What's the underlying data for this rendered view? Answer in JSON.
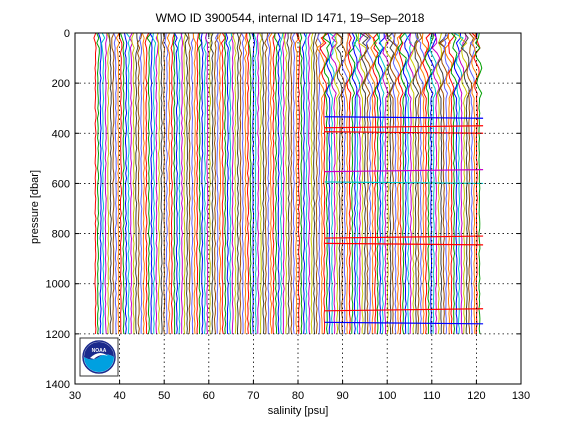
{
  "chart_data": {
    "type": "line",
    "title": "WMO ID 3900544, internal ID 1471, 19–Sep–2018",
    "xlabel": "salinity [psu]",
    "ylabel": "pressure [dbar]",
    "xlim": [
      30,
      130
    ],
    "ylim": [
      0,
      1400
    ],
    "y_reversed": true,
    "grid": true,
    "x_ticks": [
      "30",
      "40",
      "50",
      "60",
      "70",
      "80",
      "90",
      "100",
      "110",
      "120",
      "130"
    ],
    "y_ticks": [
      "0",
      "200",
      "400",
      "600",
      "800",
      "1000",
      "1200",
      "1400"
    ],
    "profile_spacing": 0.57,
    "profile_count": 152,
    "x_start": 34.6,
    "pressure_max": 1200,
    "series_colors": [
      "#ff0000",
      "#00a000",
      "#0000ff",
      "#00c8c8",
      "#c800c8",
      "#c8c800",
      "#404040",
      "#a05000",
      "#6060ff",
      "#ff8000"
    ],
    "highlight_levels": [
      {
        "p": 340,
        "color": "#0000ff"
      },
      {
        "p": 370,
        "color": "#ff0000"
      },
      {
        "p": 400,
        "color": "#ff0000"
      },
      {
        "p": 545,
        "color": "#c800c8"
      },
      {
        "p": 600,
        "color": "#00c8c8"
      },
      {
        "p": 810,
        "color": "#ff0000"
      },
      {
        "p": 845,
        "color": "#ff0000"
      },
      {
        "p": 1100,
        "color": "#ff0000"
      },
      {
        "p": 1160,
        "color": "#0000ff"
      }
    ]
  },
  "logo": {
    "text": "NOAA",
    "outer_color": "#ffffff",
    "top_color": "#1a2a8c",
    "wave_color": "#00a0e0"
  }
}
